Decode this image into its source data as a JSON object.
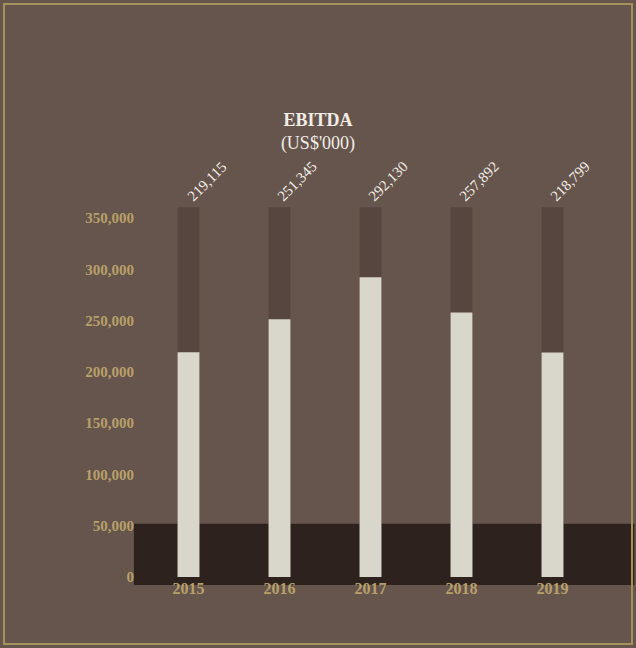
{
  "chart_data": {
    "type": "bar",
    "title": "EBITDA",
    "subtitle": "(US$'000)",
    "categories": [
      "2015",
      "2016",
      "2017",
      "2018",
      "2019"
    ],
    "values": [
      219115,
      251345,
      292130,
      257892,
      218799
    ],
    "value_labels": [
      "219,115",
      "251,345",
      "292,130",
      "257,892",
      "218,799"
    ],
    "data_labels": true,
    "color": "#d9d6cc",
    "ylim": [
      0,
      350000
    ],
    "yticks": [
      0,
      {
        "value": 50000,
        "label": "50,000"
      },
      {
        "value": 100000,
        "label": "100,000"
      },
      {
        "value": 150000,
        "label": "150,000"
      },
      {
        "value": 200000,
        "label": "200,000"
      },
      {
        "value": 250000,
        "label": "250,000"
      },
      {
        "value": 300000,
        "label": "300,000"
      },
      {
        "value": 350000,
        "label": "350,000"
      }
    ],
    "grid": false
  }
}
